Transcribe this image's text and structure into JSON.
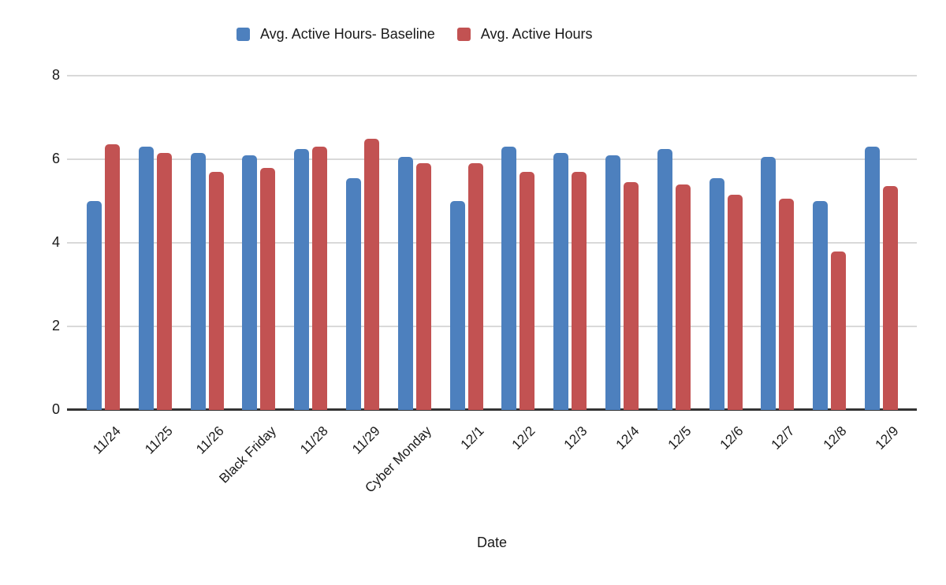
{
  "chart_data": {
    "type": "bar",
    "title": "",
    "xlabel": "Date",
    "ylabel": "",
    "ylim": [
      0,
      8
    ],
    "yticks": [
      0,
      2,
      4,
      6,
      8
    ],
    "grid": true,
    "legend_position": "top",
    "categories": [
      "11/24",
      "11/25",
      "11/26",
      "Black Friday",
      "11/28",
      "11/29",
      "Cyber Monday",
      "12/1",
      "12/2",
      "12/3",
      "12/4",
      "12/5",
      "12/6",
      "12/7",
      "12/8",
      "12/9"
    ],
    "series": [
      {
        "name": "Avg. Active Hours- Baseline",
        "color": "#4d80be",
        "values": [
          5.0,
          6.3,
          6.15,
          6.1,
          6.25,
          5.55,
          6.05,
          5.0,
          6.3,
          6.15,
          6.1,
          6.25,
          5.55,
          6.05,
          5.0,
          6.3
        ]
      },
      {
        "name": "Avg. Active Hours",
        "color": "#c25252",
        "values": [
          6.35,
          6.15,
          5.7,
          5.8,
          6.3,
          6.5,
          5.9,
          5.9,
          5.7,
          5.7,
          5.45,
          5.4,
          5.15,
          5.05,
          3.8,
          5.35
        ]
      }
    ]
  },
  "colors": {
    "background": "#ffffff",
    "gridline": "#d9d9d9",
    "axis": "#333333",
    "text": "#1a1a1a"
  }
}
